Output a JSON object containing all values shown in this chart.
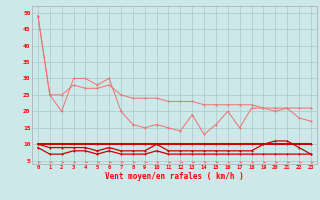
{
  "x": [
    0,
    1,
    2,
    3,
    4,
    5,
    6,
    7,
    8,
    9,
    10,
    11,
    12,
    13,
    14,
    15,
    16,
    17,
    18,
    19,
    20,
    21,
    22,
    23
  ],
  "line_rafales": [
    49,
    25,
    20,
    30,
    30,
    28,
    30,
    20,
    16,
    15,
    16,
    15,
    14,
    19,
    13,
    16,
    20,
    15,
    21,
    21,
    20,
    21,
    18,
    17
  ],
  "line_upper": [
    49,
    25,
    25,
    28,
    27,
    27,
    28,
    25,
    24,
    24,
    24,
    23,
    23,
    23,
    22,
    22,
    22,
    22,
    22,
    21,
    21,
    21,
    21,
    21
  ],
  "line_dark1": [
    9,
    7,
    7,
    8,
    8,
    7,
    8,
    7,
    7,
    7,
    8,
    7,
    7,
    7,
    7,
    7,
    7,
    7,
    7,
    7,
    7,
    7,
    7,
    7
  ],
  "line_dark2": [
    10,
    9,
    9,
    9,
    9,
    8,
    9,
    8,
    8,
    8,
    10,
    8,
    8,
    8,
    8,
    8,
    8,
    8,
    8,
    10,
    11,
    11,
    9,
    7
  ],
  "line_dark3": [
    10,
    10,
    10,
    10,
    10,
    10,
    10,
    10,
    10,
    10,
    10,
    10,
    10,
    10,
    10,
    10,
    10,
    10,
    10,
    10,
    10,
    10,
    10,
    10
  ],
  "bg": "#cce8e8",
  "grid_color": "#a8c8c8",
  "light_red": "#f07070",
  "dark_red": "#cc0000",
  "xlabel": "Vent moyen/en rafales ( km/h )",
  "yticks": [
    5,
    10,
    15,
    20,
    25,
    30,
    35,
    40,
    45,
    50
  ],
  "ylim": [
    4.0,
    52.0
  ],
  "xlim": [
    -0.5,
    23.5
  ]
}
